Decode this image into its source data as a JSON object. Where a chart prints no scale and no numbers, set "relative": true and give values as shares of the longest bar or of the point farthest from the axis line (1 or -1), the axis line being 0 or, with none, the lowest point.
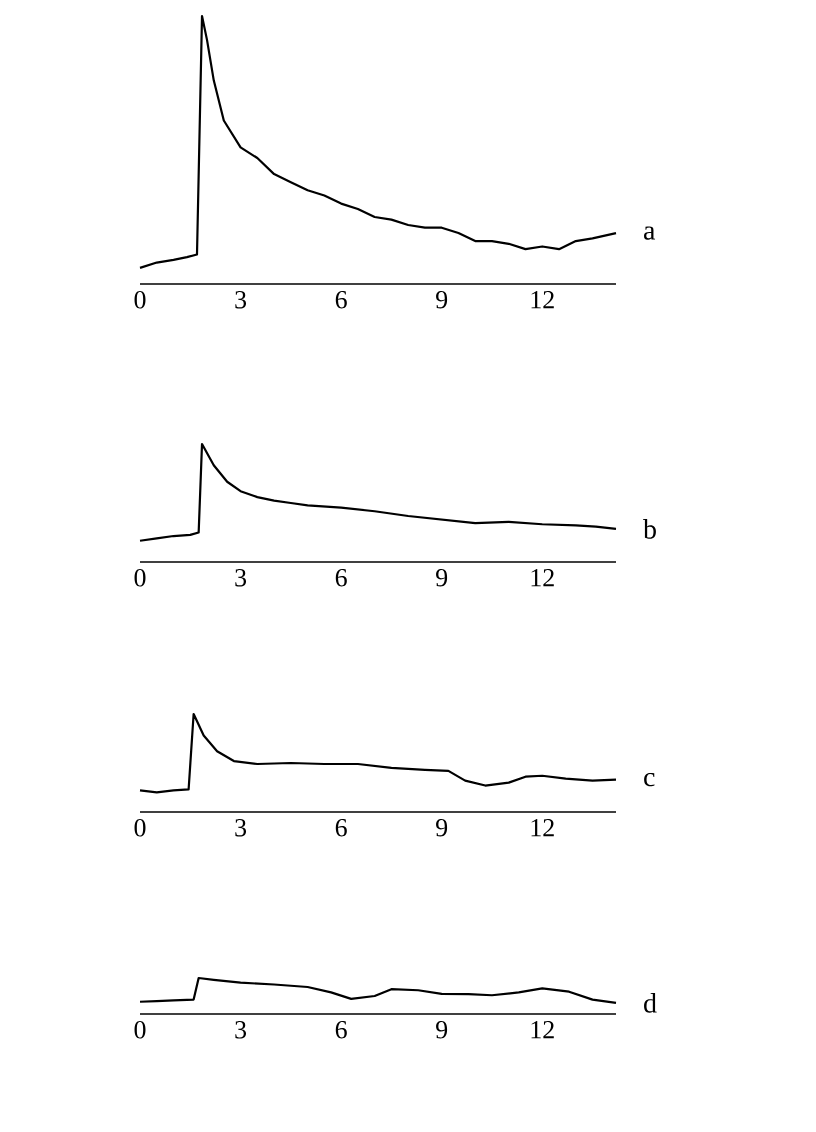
{
  "chart_data": [
    {
      "type": "line",
      "relative": true,
      "color": "#000000",
      "xlim": [
        0,
        14.2
      ],
      "xticks": [
        0,
        3,
        6,
        9,
        12
      ],
      "annotations": [
        "a"
      ],
      "x": [
        0,
        0.5,
        1,
        1.4,
        1.7,
        1.85,
        2.0,
        2.2,
        2.5,
        3,
        3.5,
        4,
        4.5,
        5,
        5.5,
        6,
        6.5,
        7,
        7.5,
        8,
        8.5,
        9,
        9.5,
        10,
        10.5,
        11,
        11.5,
        12,
        12.5,
        13,
        13.5,
        14.2
      ],
      "values": [
        0.06,
        0.08,
        0.09,
        0.1,
        0.11,
        1.0,
        0.91,
        0.76,
        0.61,
        0.51,
        0.47,
        0.41,
        0.38,
        0.35,
        0.33,
        0.3,
        0.28,
        0.25,
        0.24,
        0.22,
        0.21,
        0.21,
        0.19,
        0.16,
        0.16,
        0.15,
        0.13,
        0.14,
        0.13,
        0.16,
        0.17,
        0.19
      ]
    },
    {
      "type": "line",
      "relative": true,
      "color": "#000000",
      "xlim": [
        0,
        14.2
      ],
      "xticks": [
        0,
        3,
        6,
        9,
        12
      ],
      "annotations": [
        "b"
      ],
      "x": [
        0,
        0.5,
        1,
        1.5,
        1.75,
        1.85,
        2.2,
        2.6,
        3,
        3.5,
        4,
        4.5,
        5,
        6,
        7,
        8,
        9,
        10,
        11,
        12,
        13,
        13.6,
        14.2
      ],
      "values": [
        0.18,
        0.2,
        0.22,
        0.23,
        0.25,
        1.0,
        0.82,
        0.68,
        0.6,
        0.55,
        0.52,
        0.5,
        0.48,
        0.46,
        0.43,
        0.39,
        0.36,
        0.33,
        0.34,
        0.32,
        0.31,
        0.3,
        0.28
      ]
    },
    {
      "type": "line",
      "relative": true,
      "color": "#000000",
      "xlim": [
        0,
        14.2
      ],
      "xticks": [
        0,
        3,
        6,
        9,
        12
      ],
      "annotations": [
        "c"
      ],
      "x": [
        0,
        0.5,
        1,
        1.45,
        1.6,
        1.9,
        2.3,
        2.8,
        3.5,
        4.5,
        5.5,
        6.5,
        7.5,
        8.5,
        9.2,
        9.7,
        10.3,
        11,
        11.5,
        12,
        12.7,
        13.5,
        14.2
      ],
      "values": [
        0.22,
        0.2,
        0.22,
        0.23,
        1.0,
        0.78,
        0.62,
        0.52,
        0.49,
        0.5,
        0.49,
        0.49,
        0.45,
        0.43,
        0.42,
        0.32,
        0.27,
        0.3,
        0.36,
        0.37,
        0.34,
        0.32,
        0.33
      ]
    },
    {
      "type": "line",
      "relative": true,
      "color": "#000000",
      "xlim": [
        0,
        14.2
      ],
      "xticks": [
        0,
        3,
        6,
        9,
        12
      ],
      "annotations": [
        "d"
      ],
      "x": [
        0,
        0.5,
        1,
        1.6,
        1.75,
        2.2,
        3,
        4,
        5,
        5.7,
        6.3,
        7,
        7.5,
        8.3,
        9,
        9.8,
        10.5,
        11.3,
        12,
        12.8,
        13.5,
        14.2
      ],
      "values": [
        0.34,
        0.36,
        0.38,
        0.4,
        1.0,
        0.95,
        0.87,
        0.82,
        0.75,
        0.6,
        0.42,
        0.5,
        0.69,
        0.66,
        0.56,
        0.55,
        0.52,
        0.6,
        0.71,
        0.62,
        0.4,
        0.31
      ]
    }
  ]
}
